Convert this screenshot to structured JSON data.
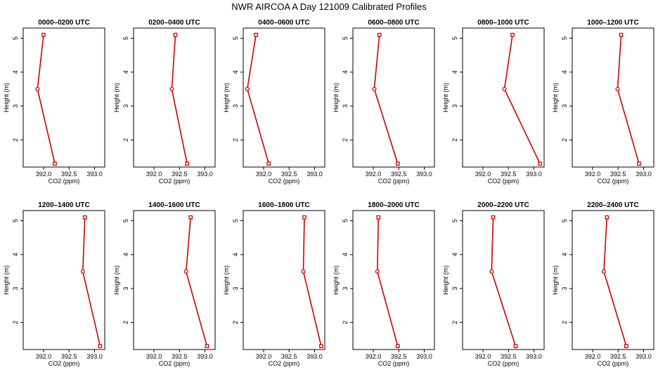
{
  "title": "NWR AIRCOA A  Day 121009  Calibrated Profiles",
  "colors": {
    "line": "#cc0000",
    "marker": "#dd0000",
    "frame": "#000000"
  },
  "chart_data": {
    "type": "line",
    "xlabel": "CO2 (ppm)",
    "ylabel": "Height (m)",
    "xlim": [
      391.6,
      393.2
    ],
    "ylim": [
      1.2,
      5.3
    ],
    "xticks": [
      "392.0",
      "392.5",
      "393.0"
    ],
    "xtick_values": [
      392.0,
      392.5,
      393.0
    ],
    "yticks": [
      "2",
      "3",
      "4",
      "5"
    ],
    "ytick_values": [
      2,
      3,
      4,
      5
    ],
    "heights": [
      5.1,
      3.5,
      1.3
    ],
    "panels": [
      {
        "title": "0000–0200 UTC",
        "values": [
          392.0,
          391.88,
          392.22
        ]
      },
      {
        "title": "0200–0400 UTC",
        "values": [
          392.42,
          392.35,
          392.65
        ]
      },
      {
        "title": "0400–0600 UTC",
        "values": [
          391.85,
          391.68,
          392.1
        ]
      },
      {
        "title": "0600–0800 UTC",
        "values": [
          392.12,
          392.02,
          392.48
        ]
      },
      {
        "title": "0800–1000 UTC",
        "values": [
          392.58,
          392.42,
          393.12
        ]
      },
      {
        "title": "1000–1200 UTC",
        "values": [
          392.56,
          392.49,
          392.91
        ]
      },
      {
        "title": "1200–1400 UTC",
        "values": [
          392.81,
          392.77,
          393.11
        ]
      },
      {
        "title": "1400–1600 UTC",
        "values": [
          392.72,
          392.63,
          393.04
        ]
      },
      {
        "title": "1600–1800 UTC",
        "values": [
          392.8,
          392.78,
          393.13
        ]
      },
      {
        "title": "1800–2000 UTC",
        "values": [
          392.1,
          392.08,
          392.48
        ]
      },
      {
        "title": "2000–2200 UTC",
        "values": [
          392.2,
          392.17,
          392.64
        ]
      },
      {
        "title": "2200–2400 UTC",
        "values": [
          392.28,
          392.22,
          392.66
        ]
      }
    ]
  }
}
